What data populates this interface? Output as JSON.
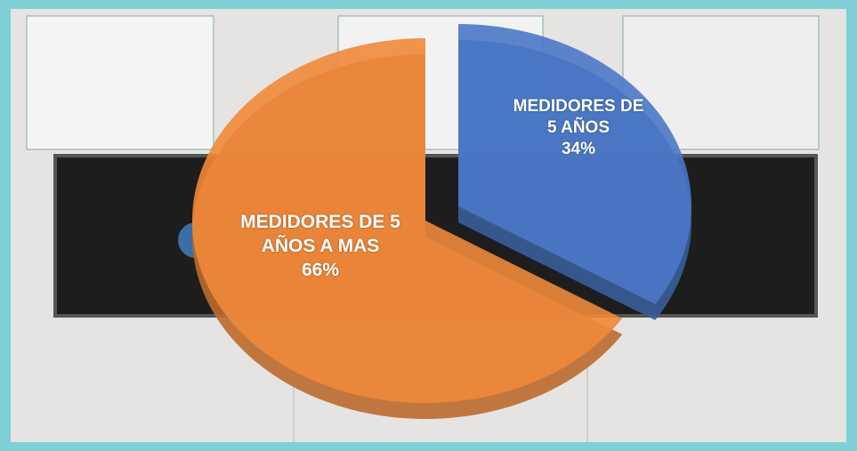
{
  "chart_data": {
    "type": "pie",
    "categories": [
      "MEDIDORES DE 5 AÑOS",
      "MEDIDORES DE 5 AÑOS A MAS"
    ],
    "values": [
      34,
      66
    ],
    "value_labels": [
      "34%",
      "66%"
    ],
    "colors": [
      "#4a78c6",
      "#f0883a"
    ]
  }
}
